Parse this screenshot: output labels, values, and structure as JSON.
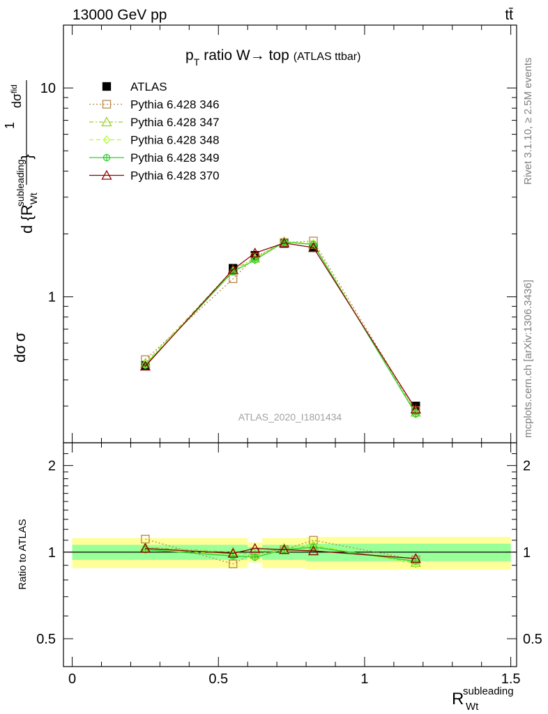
{
  "header": {
    "energy_label": "13000 GeV pp",
    "process_label": "tt̄"
  },
  "side_labels": {
    "rivet": "Rivet 3.1.10, ≥ 2.5M events",
    "mcplots": "mcplots.cern.ch [arXiv:1306.3436]"
  },
  "chart_data": [
    {
      "type": "line",
      "title": {
        "p": "p",
        "p_sub": "T",
        "main": "ratio W→ top",
        "small": "(ATLAS ttbar)"
      },
      "watermark": "ATLAS_2020_I1801434",
      "ylabel": {
        "line1": "d",
        "sigma": "σ",
        "frac_den": "σ",
        "frac_num": "1",
        "d2": "d",
        "sigma_fid": "σ",
        "fid": "fid",
        "d3": "d {R",
        "sup": "subleading",
        "sub": "Wt",
        "close": "}"
      },
      "yscale": "log",
      "ylim": [
        0.2,
        20
      ],
      "xlim": [
        -0.03,
        1.52
      ],
      "yticks": [
        {
          "v": 1,
          "label": "1"
        },
        {
          "v": 10,
          "label": "10"
        }
      ],
      "legend": {
        "placement": "top-left"
      },
      "x": [
        0.25,
        0.55,
        0.625,
        0.725,
        0.825,
        1.175
      ],
      "series": [
        {
          "name": "ATLAS",
          "color": "#000000",
          "marker": "square-filled",
          "line": "none",
          "values": [
            0.47,
            1.37,
            1.58,
            1.8,
            1.72,
            0.3
          ]
        },
        {
          "name": "Pythia 6.428 346",
          "color": "#b8864b",
          "marker": "square-open",
          "line": "dotted",
          "values": [
            0.5,
            1.22,
            1.55,
            1.82,
            1.85,
            0.285
          ]
        },
        {
          "name": "Pythia 6.428 347",
          "color": "#9acd32",
          "marker": "triangle-open",
          "line": "dashdot",
          "values": [
            0.48,
            1.35,
            1.53,
            1.84,
            1.78,
            0.28
          ]
        },
        {
          "name": "Pythia 6.428 348",
          "color": "#adff2f",
          "marker": "diamond-open",
          "line": "dashed",
          "values": [
            0.475,
            1.33,
            1.51,
            1.84,
            1.8,
            0.275
          ]
        },
        {
          "name": "Pythia 6.428 349",
          "color": "#32cd32",
          "marker": "cross-circle",
          "line": "solid",
          "values": [
            0.47,
            1.32,
            1.5,
            1.83,
            1.78,
            0.275
          ]
        },
        {
          "name": "Pythia 6.428 370",
          "color": "#8b0000",
          "marker": "triangle-open",
          "line": "solid",
          "values": [
            0.465,
            1.35,
            1.62,
            1.81,
            1.72,
            0.29
          ]
        }
      ]
    },
    {
      "type": "line",
      "ylabel": "Ratio to ATLAS",
      "xlabel": {
        "main": "R",
        "sup": "subleading",
        "sub": "Wt"
      },
      "yscale": "log",
      "ylim": [
        0.4,
        2.4
      ],
      "xlim": [
        -0.03,
        1.52
      ],
      "xticks": [
        {
          "v": 0,
          "label": "0"
        },
        {
          "v": 0.5,
          "label": "0.5"
        },
        {
          "v": 1,
          "label": "1"
        },
        {
          "v": 1.5,
          "label": "1.5"
        }
      ],
      "yticks": [
        {
          "v": 0.5,
          "label": "0.5"
        },
        {
          "v": 1,
          "label": "1"
        },
        {
          "v": 2,
          "label": "2"
        }
      ],
      "bands": [
        {
          "x0": 0.0,
          "x1": 0.5,
          "stat": 0.06,
          "total": 0.12
        },
        {
          "x0": 0.5,
          "x1": 0.6,
          "stat": 0.06,
          "total": 0.12
        },
        {
          "x0": 0.6,
          "x1": 0.65,
          "stat": 0.04,
          "total": 0.08
        },
        {
          "x0": 0.65,
          "x1": 0.8,
          "stat": 0.06,
          "total": 0.12
        },
        {
          "x0": 0.8,
          "x1": 1.5,
          "stat": 0.07,
          "total": 0.13
        }
      ],
      "x": [
        0.25,
        0.55,
        0.625,
        0.725,
        0.825,
        1.175
      ],
      "series": [
        {
          "name": "Pythia 6.428 346",
          "values": [
            1.11,
            0.91,
            1.0,
            1.02,
            1.1,
            0.94
          ]
        },
        {
          "name": "Pythia 6.428 347",
          "values": [
            1.04,
            1.0,
            0.98,
            1.03,
            1.05,
            0.92
          ]
        },
        {
          "name": "Pythia 6.428 348",
          "values": [
            1.03,
            0.98,
            0.97,
            1.02,
            1.06,
            0.91
          ]
        },
        {
          "name": "Pythia 6.428 349",
          "values": [
            1.02,
            0.97,
            0.96,
            1.02,
            1.04,
            0.93
          ]
        },
        {
          "name": "Pythia 6.428 370",
          "values": [
            1.03,
            0.99,
            1.03,
            1.02,
            1.01,
            0.95
          ]
        }
      ]
    }
  ]
}
